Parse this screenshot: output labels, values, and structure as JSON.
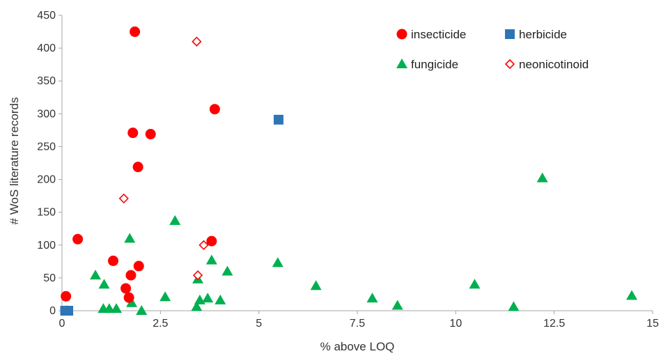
{
  "chart_data": {
    "type": "scatter",
    "xlabel": "% above LOQ",
    "ylabel": "# WoS literature records",
    "xlim": [
      0,
      15
    ],
    "ylim": [
      0,
      450
    ],
    "xticks": [
      0,
      2.5,
      5,
      7.5,
      10,
      12.5,
      15
    ],
    "xtick_labels": [
      "0",
      "2.5",
      "5",
      "7.5",
      "10",
      "12.5",
      "15"
    ],
    "yticks": [
      0,
      50,
      100,
      150,
      200,
      250,
      300,
      350,
      400,
      450
    ],
    "ytick_labels": [
      "0",
      "50",
      "100",
      "150",
      "200",
      "250",
      "300",
      "350",
      "400",
      "450"
    ],
    "grid": false,
    "legend_position": "top-right",
    "legend_order": [
      "insecticide",
      "herbicide",
      "fungicide",
      "neonicotinoid"
    ],
    "series": [
      {
        "name": "insecticide",
        "marker": "circle",
        "color": "#ff0000",
        "points": [
          [
            0.1,
            22
          ],
          [
            0.4,
            109
          ],
          [
            1.3,
            76
          ],
          [
            1.62,
            34
          ],
          [
            1.7,
            20
          ],
          [
            1.75,
            54
          ],
          [
            1.8,
            271
          ],
          [
            1.85,
            425
          ],
          [
            1.93,
            219
          ],
          [
            1.95,
            68
          ],
          [
            2.25,
            269
          ],
          [
            3.8,
            106
          ],
          [
            3.88,
            307
          ]
        ]
      },
      {
        "name": "herbicide",
        "marker": "square",
        "color": "#2e75b6",
        "points": [
          [
            0.08,
            0
          ],
          [
            0.16,
            0
          ],
          [
            5.5,
            291
          ]
        ]
      },
      {
        "name": "fungicide",
        "marker": "triangle",
        "color": "#00b050",
        "points": [
          [
            0.1,
            0
          ],
          [
            0.15,
            0
          ],
          [
            0.85,
            54
          ],
          [
            1.05,
            3
          ],
          [
            1.07,
            40
          ],
          [
            1.2,
            3
          ],
          [
            1.38,
            3
          ],
          [
            1.72,
            110
          ],
          [
            1.77,
            12
          ],
          [
            2.02,
            0
          ],
          [
            2.62,
            21
          ],
          [
            2.87,
            137
          ],
          [
            3.42,
            6
          ],
          [
            3.45,
            48
          ],
          [
            3.5,
            16
          ],
          [
            3.7,
            19
          ],
          [
            3.8,
            77
          ],
          [
            4.02,
            16
          ],
          [
            4.2,
            60
          ],
          [
            5.48,
            73
          ],
          [
            6.45,
            38
          ],
          [
            7.88,
            19
          ],
          [
            8.52,
            8
          ],
          [
            10.48,
            40
          ],
          [
            11.47,
            6
          ],
          [
            12.2,
            202
          ],
          [
            14.47,
            23
          ]
        ]
      },
      {
        "name": "neonicotinoid",
        "marker": "diamond-open",
        "color": "#ff0000",
        "points": [
          [
            1.57,
            171
          ],
          [
            3.42,
            410
          ],
          [
            3.45,
            54
          ],
          [
            3.6,
            100
          ]
        ]
      }
    ]
  }
}
